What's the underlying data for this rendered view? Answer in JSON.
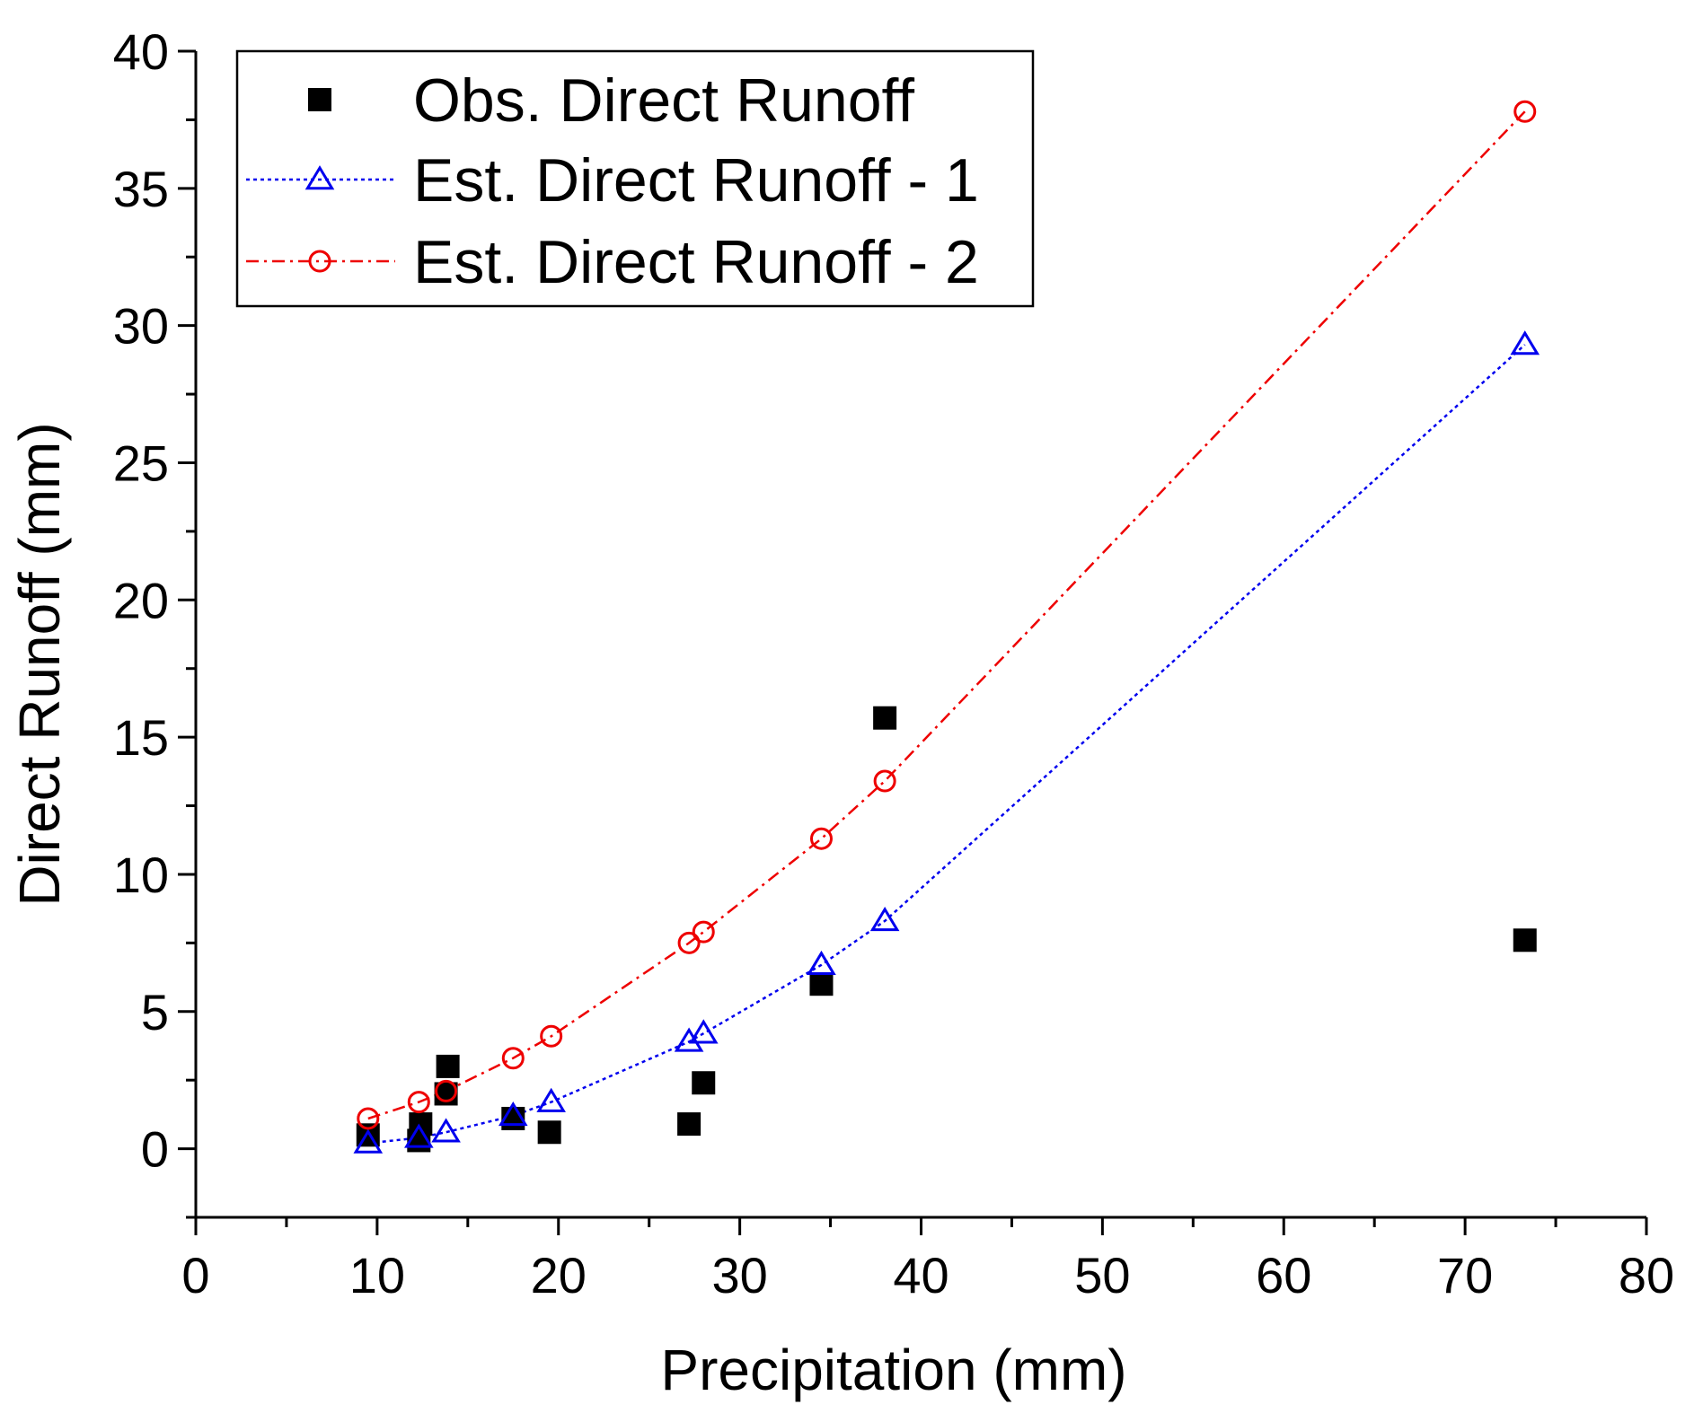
{
  "chart_data": {
    "type": "scatter",
    "xlabel": "Precipitation (mm)",
    "ylabel": "Direct Runoff (mm)",
    "xlim": [
      0,
      80
    ],
    "ylim": [
      -2.5,
      40
    ],
    "xticks": [
      0,
      10,
      20,
      30,
      40,
      50,
      60,
      70,
      80
    ],
    "yticks": [
      0,
      5,
      10,
      15,
      20,
      25,
      30,
      35,
      40
    ],
    "x_minor_step": 5,
    "y_minor_step": 2.5,
    "legend_position": "top-left",
    "series": [
      {
        "name": "Obs. Direct Runoff",
        "marker": "filled-square",
        "line": "none",
        "color": "#000000",
        "points": [
          [
            9.5,
            0.5
          ],
          [
            12.3,
            0.3
          ],
          [
            12.4,
            0.9
          ],
          [
            13.8,
            2.0
          ],
          [
            13.9,
            3.0
          ],
          [
            17.5,
            1.1
          ],
          [
            19.5,
            0.6
          ],
          [
            27.2,
            0.9
          ],
          [
            28.0,
            2.4
          ],
          [
            34.5,
            6.0
          ],
          [
            38.0,
            15.7
          ],
          [
            73.3,
            7.6
          ]
        ]
      },
      {
        "name": "Est. Direct Runoff - 1",
        "marker": "open-triangle",
        "line": "dotted",
        "color": "#0000ee",
        "points": [
          [
            9.5,
            0.2
          ],
          [
            12.3,
            0.4
          ],
          [
            13.8,
            0.6
          ],
          [
            17.5,
            1.2
          ],
          [
            19.6,
            1.7
          ],
          [
            27.2,
            3.9
          ],
          [
            28.0,
            4.2
          ],
          [
            34.5,
            6.7
          ],
          [
            38.0,
            8.3
          ],
          [
            73.3,
            29.3
          ]
        ]
      },
      {
        "name": "Est. Direct Runoff - 2",
        "marker": "open-circle",
        "line": "dash-dot",
        "color": "#ee0000",
        "points": [
          [
            9.5,
            1.1
          ],
          [
            12.3,
            1.7
          ],
          [
            13.8,
            2.1
          ],
          [
            17.5,
            3.3
          ],
          [
            19.6,
            4.1
          ],
          [
            27.2,
            7.5
          ],
          [
            28.0,
            7.9
          ],
          [
            34.5,
            11.3
          ],
          [
            38.0,
            13.4
          ],
          [
            73.3,
            37.8
          ]
        ]
      }
    ]
  }
}
